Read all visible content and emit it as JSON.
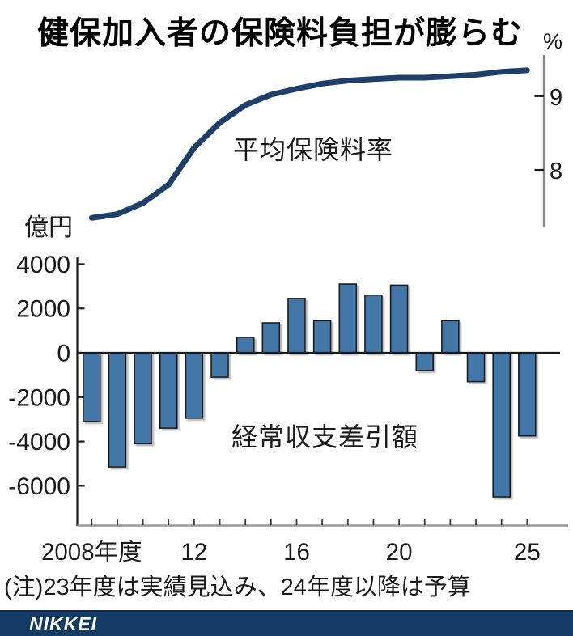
{
  "title": "健保加入者の保険料負担が膨らむ",
  "note": "(注)23年度は実績見込み、24年度以降は予算",
  "footer": {
    "brand": "NIKKEI"
  },
  "colors": {
    "line": "#1e3f69",
    "bar_fill": "#4377a8",
    "bar_stroke": "#1a1a1a",
    "axis_dark": "#1a1a1a",
    "axis_gray": "#8c8c8c",
    "baseline_gray": "#999999",
    "year_tick": "#3a3a3a",
    "footer_bg": "#123a63",
    "text": "#1a1a1a"
  },
  "chart_data": [
    {
      "type": "line",
      "series_label": "平均保険料率",
      "unit": "%",
      "x": [
        2008,
        2009,
        2010,
        2011,
        2012,
        2013,
        2014,
        2015,
        2016,
        2017,
        2018,
        2019,
        2020,
        2021,
        2022,
        2023,
        2024,
        2025
      ],
      "values": [
        7.35,
        7.4,
        7.55,
        7.8,
        8.3,
        8.64,
        8.88,
        9.02,
        9.1,
        9.17,
        9.21,
        9.23,
        9.25,
        9.25,
        9.27,
        9.29,
        9.33,
        9.35
      ],
      "yticks": [
        9,
        8
      ],
      "ylim": [
        7.2,
        9.45
      ],
      "grid": false,
      "legend_position": "inside"
    },
    {
      "type": "bar",
      "series_label": "経常収支差引額",
      "unit": "億円",
      "x": [
        2008,
        2009,
        2010,
        2011,
        2012,
        2013,
        2014,
        2015,
        2016,
        2017,
        2018,
        2019,
        2020,
        2021,
        2022,
        2023,
        2024,
        2025
      ],
      "values": [
        -3100,
        -5150,
        -4100,
        -3400,
        -2950,
        -1100,
        700,
        1350,
        2450,
        1450,
        3100,
        2600,
        3050,
        -800,
        1450,
        -1300,
        -6500,
        -3750
      ],
      "yticks": [
        4000,
        2000,
        0,
        -2000,
        -4000,
        -6000
      ],
      "ylim": [
        -7000,
        4400
      ],
      "xtick_labels": [
        {
          "year": 2008,
          "label": "2008年度"
        },
        {
          "year": 2012,
          "label": "12"
        },
        {
          "year": 2016,
          "label": "16"
        },
        {
          "year": 2020,
          "label": "20"
        },
        {
          "year": 2025,
          "label": "25"
        }
      ],
      "grid": false,
      "legend_position": "inside"
    }
  ]
}
